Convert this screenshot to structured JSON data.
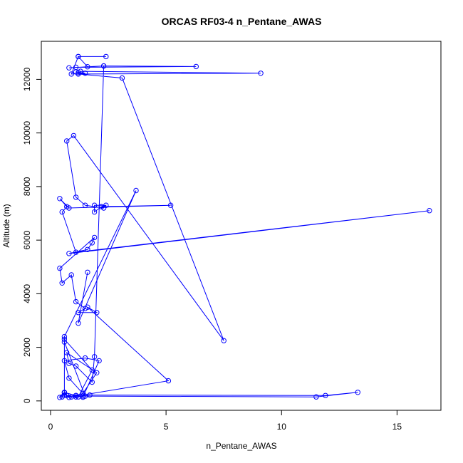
{
  "chart_data": {
    "type": "line",
    "title": "ORCAS RF03-4 n_Pentane_AWAS",
    "xlabel": "n_Pentane_AWAS",
    "ylabel": "Altitude (m)",
    "xlim": [
      -0.4,
      16.9
    ],
    "ylim": [
      -350,
      13420
    ],
    "x_ticks": [
      0,
      5,
      10,
      15
    ],
    "y_ticks": [
      0,
      2000,
      4000,
      6000,
      8000,
      10000,
      12000
    ],
    "grid": false,
    "legend": "none",
    "color": "#0000ff",
    "series": [
      {
        "x": [
          0.5,
          0.6,
          1.1,
          1.4,
          2.0,
          0.7,
          0.8,
          1.1,
          1.8,
          1.9,
          2.3,
          6.3,
          1.1,
          0.8,
          2.3,
          1.6,
          1.2,
          2.4,
          1.2,
          0.9,
          1.5,
          1.1,
          1.2,
          1.3,
          9.1,
          1.2,
          3.1,
          7.5,
          1.0,
          0.7,
          1.1,
          1.5,
          2.3,
          2.4,
          1.9,
          1.9,
          2.2,
          5.2,
          0.8,
          0.4,
          0.7,
          0.5,
          1.1,
          16.4,
          0.8,
          1.6,
          1.8,
          1.9,
          0.4,
          0.5,
          0.9,
          1.1,
          1.5,
          1.2,
          2.0,
          1.6,
          5.1,
          0.9,
          0.7,
          0.6,
          0.6,
          1.8,
          1.2,
          1.7,
          11.9,
          13.3,
          11.5,
          1.4,
          1.1,
          0.8,
          0.6,
          0.4,
          1.1,
          1.4,
          2.1,
          1.5,
          0.6,
          0.8,
          1.5,
          0.6,
          0.6,
          3.7,
          1.2,
          1.6
        ],
        "y": [
          150,
          320,
          200,
          280,
          1050,
          1800,
          1400,
          1300,
          700,
          1650,
          12500,
          12480,
          12450,
          12430,
          12500,
          12470,
          12850,
          12850,
          12850,
          12200,
          12230,
          12280,
          12250,
          12300,
          12230,
          12200,
          12050,
          2250,
          9900,
          9700,
          7600,
          7300,
          7200,
          7300,
          7300,
          7050,
          7250,
          7300,
          7200,
          7550,
          7250,
          7050,
          5550,
          7100,
          5500,
          5650,
          5900,
          6100,
          4950,
          4400,
          4700,
          3700,
          3450,
          3300,
          3300,
          3500,
          750,
          150,
          200,
          220,
          2300,
          1150,
          150,
          220,
          200,
          320,
          150,
          180,
          150,
          130,
          300,
          130,
          200,
          140,
          1500,
          1600,
          1500,
          850,
          180,
          2200,
          2400,
          7850,
          2900,
          4800
        ]
      }
    ]
  }
}
